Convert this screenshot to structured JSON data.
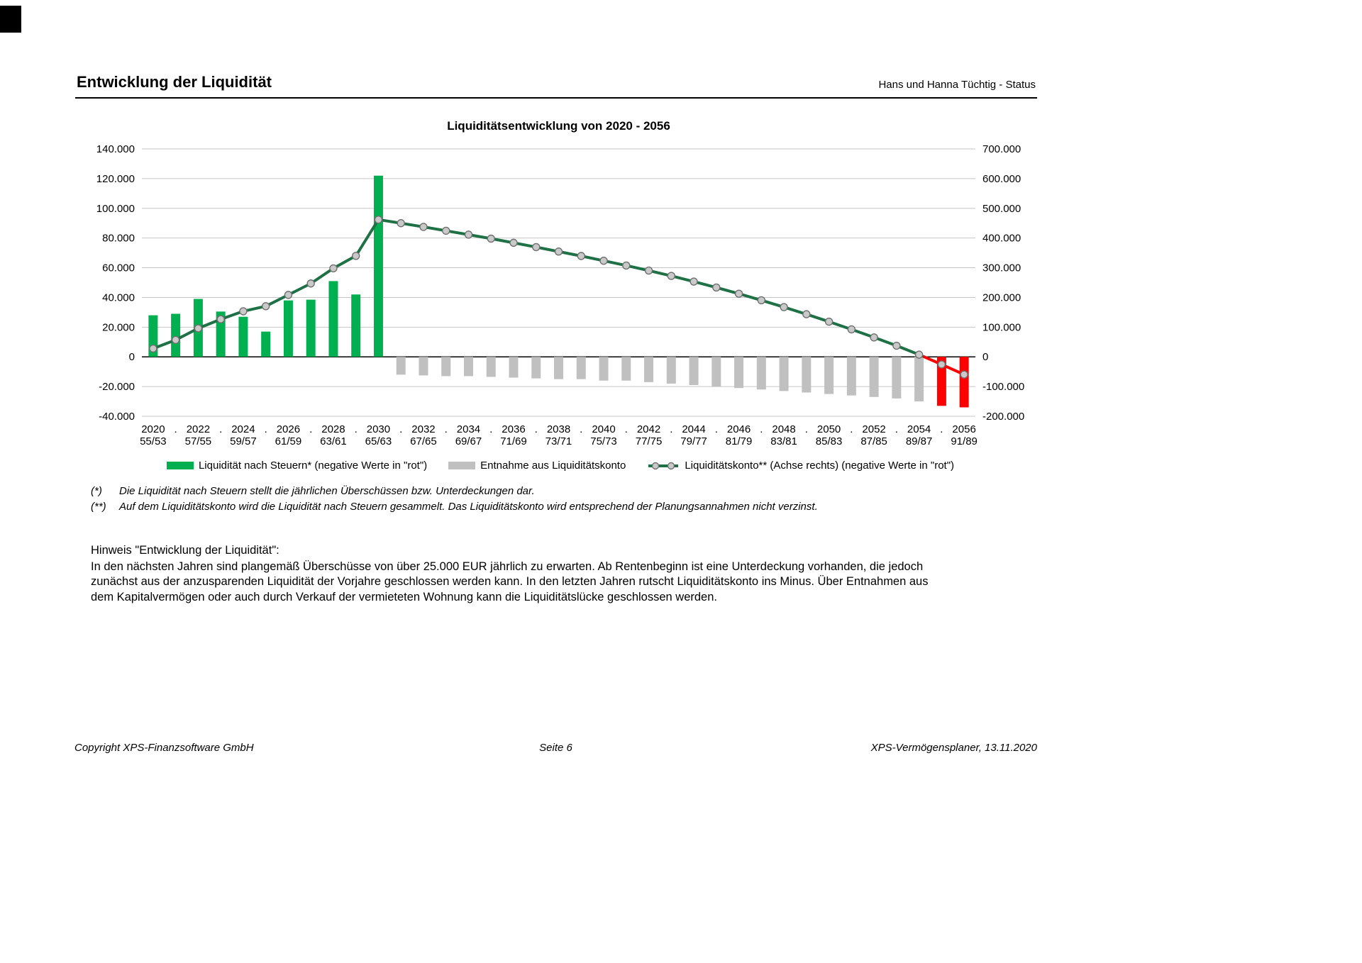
{
  "header": {
    "title": "Entwicklung der Liquidität",
    "right": "Hans und Hanna Tüchtig - Status"
  },
  "chart_data": {
    "type": "bar+line",
    "title": "Liquiditätsentwicklung von 2020 - 2056",
    "grid": true,
    "legend_position": "bottom",
    "years": [
      2020,
      2021,
      2022,
      2023,
      2024,
      2025,
      2026,
      2027,
      2028,
      2029,
      2030,
      2031,
      2032,
      2033,
      2034,
      2035,
      2036,
      2037,
      2038,
      2039,
      2040,
      2041,
      2042,
      2043,
      2044,
      2045,
      2046,
      2047,
      2048,
      2049,
      2050,
      2051,
      2052,
      2053,
      2054,
      2055,
      2056
    ],
    "x_tick_labels": [
      {
        "year": "2020",
        "ages": "55/53"
      },
      {
        "year": "2022",
        "ages": "57/55"
      },
      {
        "year": "2024",
        "ages": "59/57"
      },
      {
        "year": "2026",
        "ages": "61/59"
      },
      {
        "year": "2028",
        "ages": "63/61"
      },
      {
        "year": "2030",
        "ages": "65/63"
      },
      {
        "year": "2032",
        "ages": "67/65"
      },
      {
        "year": "2034",
        "ages": "69/67"
      },
      {
        "year": "2036",
        "ages": "71/69"
      },
      {
        "year": "2038",
        "ages": "73/71"
      },
      {
        "year": "2040",
        "ages": "75/73"
      },
      {
        "year": "2042",
        "ages": "77/75"
      },
      {
        "year": "2044",
        "ages": "79/77"
      },
      {
        "year": "2046",
        "ages": "81/79"
      },
      {
        "year": "2048",
        "ages": "83/81"
      },
      {
        "year": "2050",
        "ages": "85/83"
      },
      {
        "year": "2052",
        "ages": "87/85"
      },
      {
        "year": "2054",
        "ages": "89/87"
      },
      {
        "year": "2056",
        "ages": "91/89"
      }
    ],
    "left_axis": {
      "min": -40000,
      "max": 140000,
      "step": 20000,
      "labels": [
        "140.000",
        "120.000",
        "100.000",
        "80.000",
        "60.000",
        "40.000",
        "20.000",
        "0",
        "-20.000",
        "-40.000"
      ]
    },
    "right_axis": {
      "min": -200000,
      "max": 700000,
      "step": 100000,
      "labels": [
        "700.000",
        "600.000",
        "500.000",
        "400.000",
        "300.000",
        "200.000",
        "100.000",
        "0",
        "-100.000",
        "-200.000"
      ]
    },
    "colors": {
      "gridline": "#c6c6c6",
      "zero_line": "#000000",
      "marker_fill": "#c9c9c9",
      "marker_stroke": "#707070"
    },
    "series": [
      {
        "name": "Liquidität nach Steuern* (negative Werte in \"rot\")",
        "type": "bar",
        "color_positive": "#00b050",
        "color_negative": "#ff0000",
        "values": [
          28000,
          29000,
          39000,
          30500,
          27000,
          17000,
          38000,
          38500,
          51000,
          42000,
          122000,
          null,
          null,
          null,
          null,
          null,
          null,
          null,
          null,
          null,
          null,
          null,
          null,
          null,
          null,
          null,
          null,
          null,
          null,
          null,
          null,
          null,
          null,
          null,
          null,
          -33000,
          -34000
        ]
      },
      {
        "name": "Entnahme aus Liquiditätskonto",
        "type": "bar",
        "color": "#c0c0c0",
        "values": [
          null,
          null,
          null,
          null,
          null,
          null,
          null,
          null,
          null,
          null,
          null,
          -12000,
          -12500,
          -13000,
          -13000,
          -13500,
          -14000,
          -14500,
          -15000,
          -15000,
          -16000,
          -16000,
          -17000,
          -18000,
          -19000,
          -20000,
          -21000,
          -22000,
          -23000,
          -24000,
          -25000,
          -26000,
          -27000,
          -28000,
          -30000,
          null,
          null
        ]
      },
      {
        "name": "Liquiditätskonto** (Achse rechts) (negative Werte in \"rot\")",
        "type": "line",
        "axis": "right",
        "color": "#1e7145",
        "color_negative": "#ff0000",
        "values": [
          28000,
          57000,
          96000,
          126500,
          153500,
          170500,
          208500,
          247000,
          298000,
          340000,
          462000,
          450000,
          437500,
          424500,
          411500,
          398000,
          384000,
          369500,
          354500,
          339500,
          323500,
          307500,
          290500,
          272500,
          253500,
          233500,
          212500,
          190500,
          167500,
          143500,
          118500,
          92500,
          65500,
          37500,
          7500,
          -25500,
          -59500
        ]
      }
    ]
  },
  "footnotes": [
    {
      "marker": "(*)",
      "text": "Die Liquidität nach Steuern stellt die jährlichen Überschüssen bzw. Unterdeckungen dar."
    },
    {
      "marker": "(**)",
      "text": "Auf dem Liquiditätskonto wird die Liquidität nach Steuern gesammelt. Das Liquiditätskonto wird entsprechend der Planungsannahmen nicht verzinst."
    }
  ],
  "note": {
    "heading": "Hinweis \"Entwicklung der Liquidität\":",
    "body": "In den nächsten Jahren sind plangemäß Überschüsse von über 25.000 EUR jährlich zu erwarten. Ab Rentenbeginn ist eine Unterdeckung vorhanden, die jedoch zunächst aus der anzusparenden Liquidität der Vorjahre geschlossen werden kann. In den letzten Jahren rutscht Liquiditätskonto ins Minus. Über Entnahmen aus dem Kapitalvermögen oder auch durch Verkauf der vermieteten Wohnung kann die Liquiditätslücke geschlossen werden."
  },
  "footer": {
    "left": "Copyright XPS-Finanzsoftware GmbH",
    "center": "Seite 6",
    "right": "XPS-Vermögensplaner, 13.11.2020"
  }
}
